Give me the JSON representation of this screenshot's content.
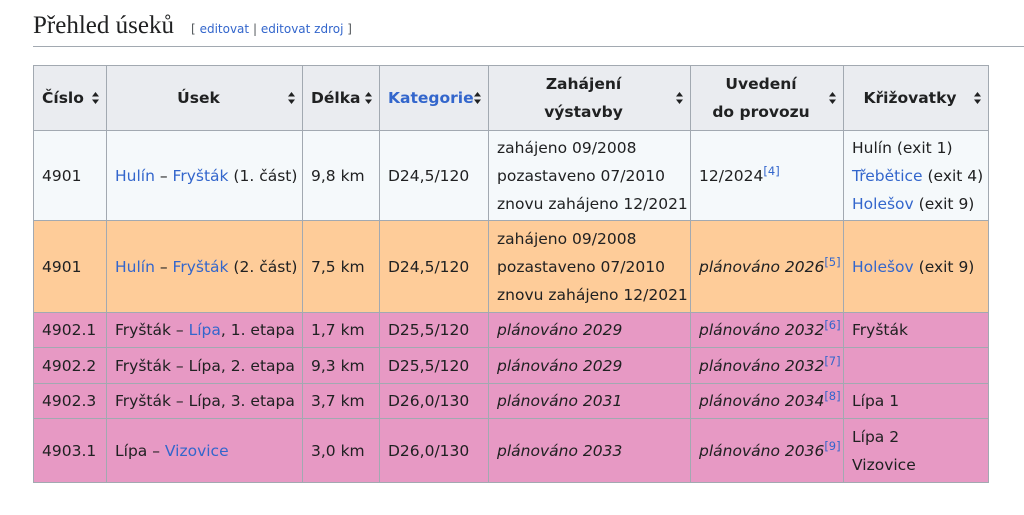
{
  "heading": {
    "title": "Přehled úseků",
    "edit_section": {
      "open": "[",
      "links": [
        "editovat",
        "editovat zdroj"
      ],
      "separator": "|",
      "close": "]"
    }
  },
  "table": {
    "headers": [
      {
        "lines": [
          "Číslo"
        ]
      },
      {
        "lines": [
          "Úsek"
        ]
      },
      {
        "lines": [
          "Délka"
        ]
      },
      {
        "lines": [
          "Kategorie"
        ],
        "link": true
      },
      {
        "lines": [
          "Zahájení",
          "výstavby"
        ]
      },
      {
        "lines": [
          "Uvedení",
          "do provozu"
        ]
      },
      {
        "lines": [
          "Křižovatky"
        ]
      }
    ],
    "rows": [
      {
        "color": "#f5f9fb",
        "cells": [
          [
            [
              "4901"
            ]
          ],
          [
            [
              {
                "text": "Hulín",
                "link": true
              },
              " – ",
              {
                "text": "Fryšták",
                "link": true
              },
              " (1. část)"
            ]
          ],
          [
            [
              "9,8 km"
            ]
          ],
          [
            [
              "D24,5/120"
            ]
          ],
          [
            [
              "zahájeno 09/2008"
            ],
            [
              "pozastaveno 07/2010"
            ],
            [
              "znovu zahájeno 12/2021"
            ]
          ],
          [
            [
              "12/2024",
              {
                "text": "[4]",
                "link": true,
                "sup": true
              }
            ]
          ],
          [
            [
              "Hulín (exit 1)"
            ],
            [
              {
                "text": "Třebětice",
                "link": true
              },
              " (exit 4)"
            ],
            [
              {
                "text": "Holešov",
                "link": true
              },
              " (exit 9)"
            ]
          ]
        ]
      },
      {
        "color": "#fecc99",
        "cells": [
          [
            [
              "4901"
            ]
          ],
          [
            [
              {
                "text": "Hulín",
                "link": true
              },
              " – ",
              {
                "text": "Fryšták",
                "link": true
              },
              " (2. část)"
            ]
          ],
          [
            [
              "7,5 km"
            ]
          ],
          [
            [
              "D24,5/120"
            ]
          ],
          [
            [
              "zahájeno 09/2008"
            ],
            [
              "pozastaveno 07/2010"
            ],
            [
              "znovu zahájeno 12/2021"
            ]
          ],
          [
            [
              {
                "text": "plánováno 2026",
                "italic": true
              },
              {
                "text": "[5]",
                "link": true,
                "sup": true
              }
            ]
          ],
          [
            [
              {
                "text": "Holešov",
                "link": true
              },
              " (exit 9)"
            ]
          ]
        ]
      },
      {
        "color": "#e799c4",
        "cells": [
          [
            [
              "4902.1"
            ]
          ],
          [
            [
              "Fryšták – ",
              {
                "text": "Lípa",
                "link": true
              },
              ", 1. etapa"
            ]
          ],
          [
            [
              "1,7 km"
            ]
          ],
          [
            [
              "D25,5/120"
            ]
          ],
          [
            [
              {
                "text": "plánováno 2029",
                "italic": true
              }
            ]
          ],
          [
            [
              {
                "text": "plánováno 2032",
                "italic": true
              },
              {
                "text": "[6]",
                "link": true,
                "sup": true
              }
            ]
          ],
          [
            [
              "Fryšták"
            ]
          ]
        ]
      },
      {
        "color": "#e799c4",
        "cells": [
          [
            [
              "4902.2"
            ]
          ],
          [
            [
              "Fryšták – Lípa, 2. etapa"
            ]
          ],
          [
            [
              "9,3 km"
            ]
          ],
          [
            [
              "D25,5/120"
            ]
          ],
          [
            [
              {
                "text": "plánováno 2029",
                "italic": true
              }
            ]
          ],
          [
            [
              {
                "text": "plánováno 2032",
                "italic": true
              },
              {
                "text": "[7]",
                "link": true,
                "sup": true
              }
            ]
          ],
          []
        ]
      },
      {
        "color": "#e799c4",
        "cells": [
          [
            [
              "4902.3"
            ]
          ],
          [
            [
              "Fryšták – Lípa, 3. etapa"
            ]
          ],
          [
            [
              "3,7 km"
            ]
          ],
          [
            [
              "D26,0/130"
            ]
          ],
          [
            [
              {
                "text": "plánováno 2031",
                "italic": true
              }
            ]
          ],
          [
            [
              {
                "text": "plánováno 2034",
                "italic": true
              },
              {
                "text": "[8]",
                "link": true,
                "sup": true
              }
            ]
          ],
          [
            [
              "Lípa 1"
            ]
          ]
        ]
      },
      {
        "color": "#e799c4",
        "cells": [
          [
            [
              "4903.1"
            ]
          ],
          [
            [
              "Lípa – ",
              {
                "text": "Vizovice",
                "link": true
              }
            ]
          ],
          [
            [
              "3,0 km"
            ]
          ],
          [
            [
              "D26,0/130"
            ]
          ],
          [
            [
              {
                "text": "plánováno 2033",
                "italic": true
              }
            ]
          ],
          [
            [
              {
                "text": "plánováno 2036",
                "italic": true
              },
              {
                "text": "[9]",
                "link": true,
                "sup": true
              }
            ]
          ],
          [
            [
              "Lípa 2"
            ],
            [
              "Vizovice"
            ]
          ]
        ]
      }
    ]
  }
}
